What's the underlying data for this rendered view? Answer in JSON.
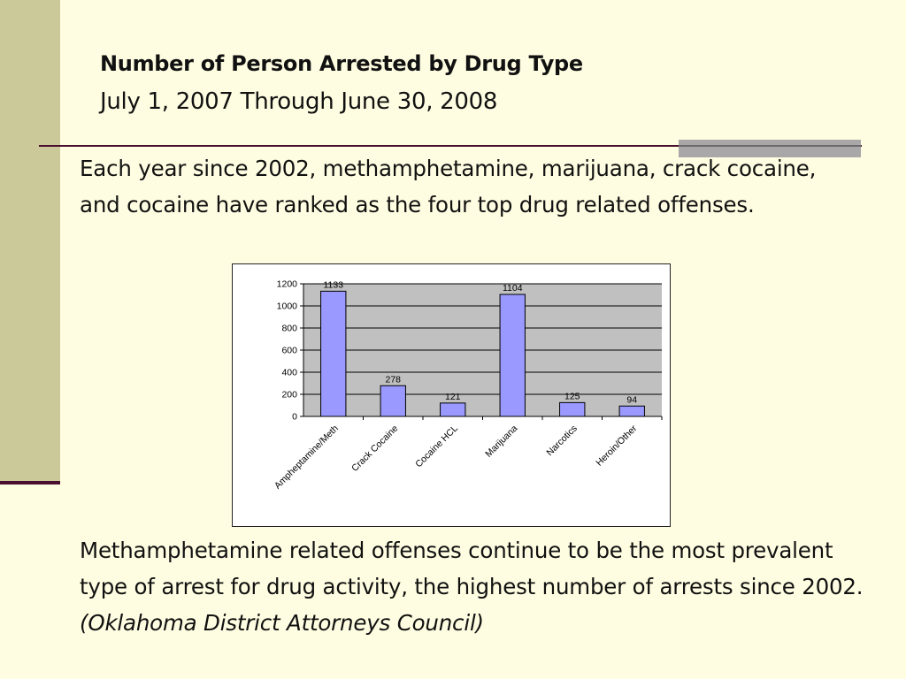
{
  "slide": {
    "title": "Number of Person Arrested by Drug Type",
    "subtitle": "July 1, 2007 Through June 30, 2008",
    "intro_text": "Each year since 2002, methamphetamine, marijuana, crack cocaine, and cocaine have ranked as the four top drug related offenses.",
    "closing_text": "Methamphetamine related offenses continue to be the most prevalent type of arrest for drug activity, the highest number of arrests since 2002.",
    "source": "(Oklahoma District Attorneys Council)"
  },
  "colors": {
    "background": "#fffde1",
    "sidebar": "#cbc89a",
    "rule": "#4a0f2e",
    "plot_area": "#c0c0c0",
    "bar_fill": "#9999ff",
    "bar_stroke": "#000000"
  },
  "chart_data": {
    "type": "bar",
    "categories": [
      "Ampheptamine/Meth",
      "Crack Cocaine",
      "Cocaine HCL",
      "Marijuana",
      "Narcotics",
      "Heroin/Other"
    ],
    "values": [
      1133,
      278,
      121,
      1104,
      125,
      94
    ],
    "title": "",
    "xlabel": "",
    "ylabel": "",
    "ylim": [
      0,
      1200
    ],
    "yticks": [
      0,
      200,
      400,
      600,
      800,
      1000,
      1200
    ],
    "grid": true,
    "legend": "none",
    "data_labels": true
  }
}
